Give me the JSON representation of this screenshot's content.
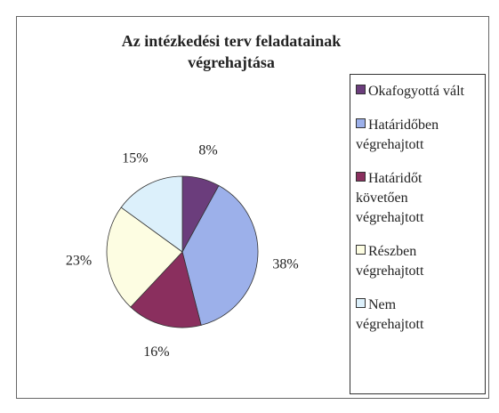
{
  "chart_data": {
    "type": "pie",
    "title": "Az intézkedési terv feladatainak végrehajtása",
    "categories": [
      "Okafogyottá vált",
      "Határidőben végrehajtott",
      "Határidőt követően végrehajtott",
      "Részben végrehajtott",
      "Nem végrehajtott"
    ],
    "values": [
      8,
      38,
      16,
      23,
      15
    ],
    "value_labels": [
      "8%",
      "38%",
      "16%",
      "23%",
      "15%"
    ],
    "colors": [
      "#6b3d7c",
      "#9cb0ea",
      "#8a2f5e",
      "#fdfde2",
      "#dcf0fb"
    ],
    "legend": "right"
  }
}
